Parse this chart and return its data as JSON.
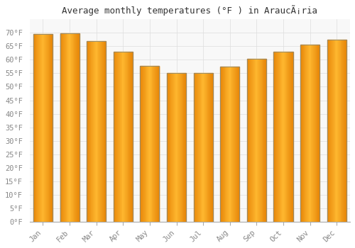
{
  "title": "Average monthly temperatures (°F ) in AraucÃ¡ria",
  "months": [
    "Jan",
    "Feb",
    "Mar",
    "Apr",
    "May",
    "Jun",
    "Jul",
    "Aug",
    "Sep",
    "Oct",
    "Nov",
    "Dec"
  ],
  "values": [
    69.5,
    69.8,
    67.0,
    63.0,
    57.8,
    55.2,
    55.1,
    57.6,
    60.4,
    63.0,
    65.5,
    67.5
  ],
  "bar_color_center": "#FFB830",
  "bar_color_edge": "#E8880A",
  "bar_outline_color": "#888877",
  "background_color": "#ffffff",
  "plot_bg_color": "#f8f8f8",
  "grid_color": "#dddddd",
  "ylim": [
    0,
    75
  ],
  "yticks": [
    0,
    5,
    10,
    15,
    20,
    25,
    30,
    35,
    40,
    45,
    50,
    55,
    60,
    65,
    70
  ],
  "title_fontsize": 9,
  "tick_fontsize": 7.5,
  "title_font": "monospace",
  "tick_font": "monospace",
  "fig_width": 5.0,
  "fig_height": 3.5,
  "dpi": 100
}
